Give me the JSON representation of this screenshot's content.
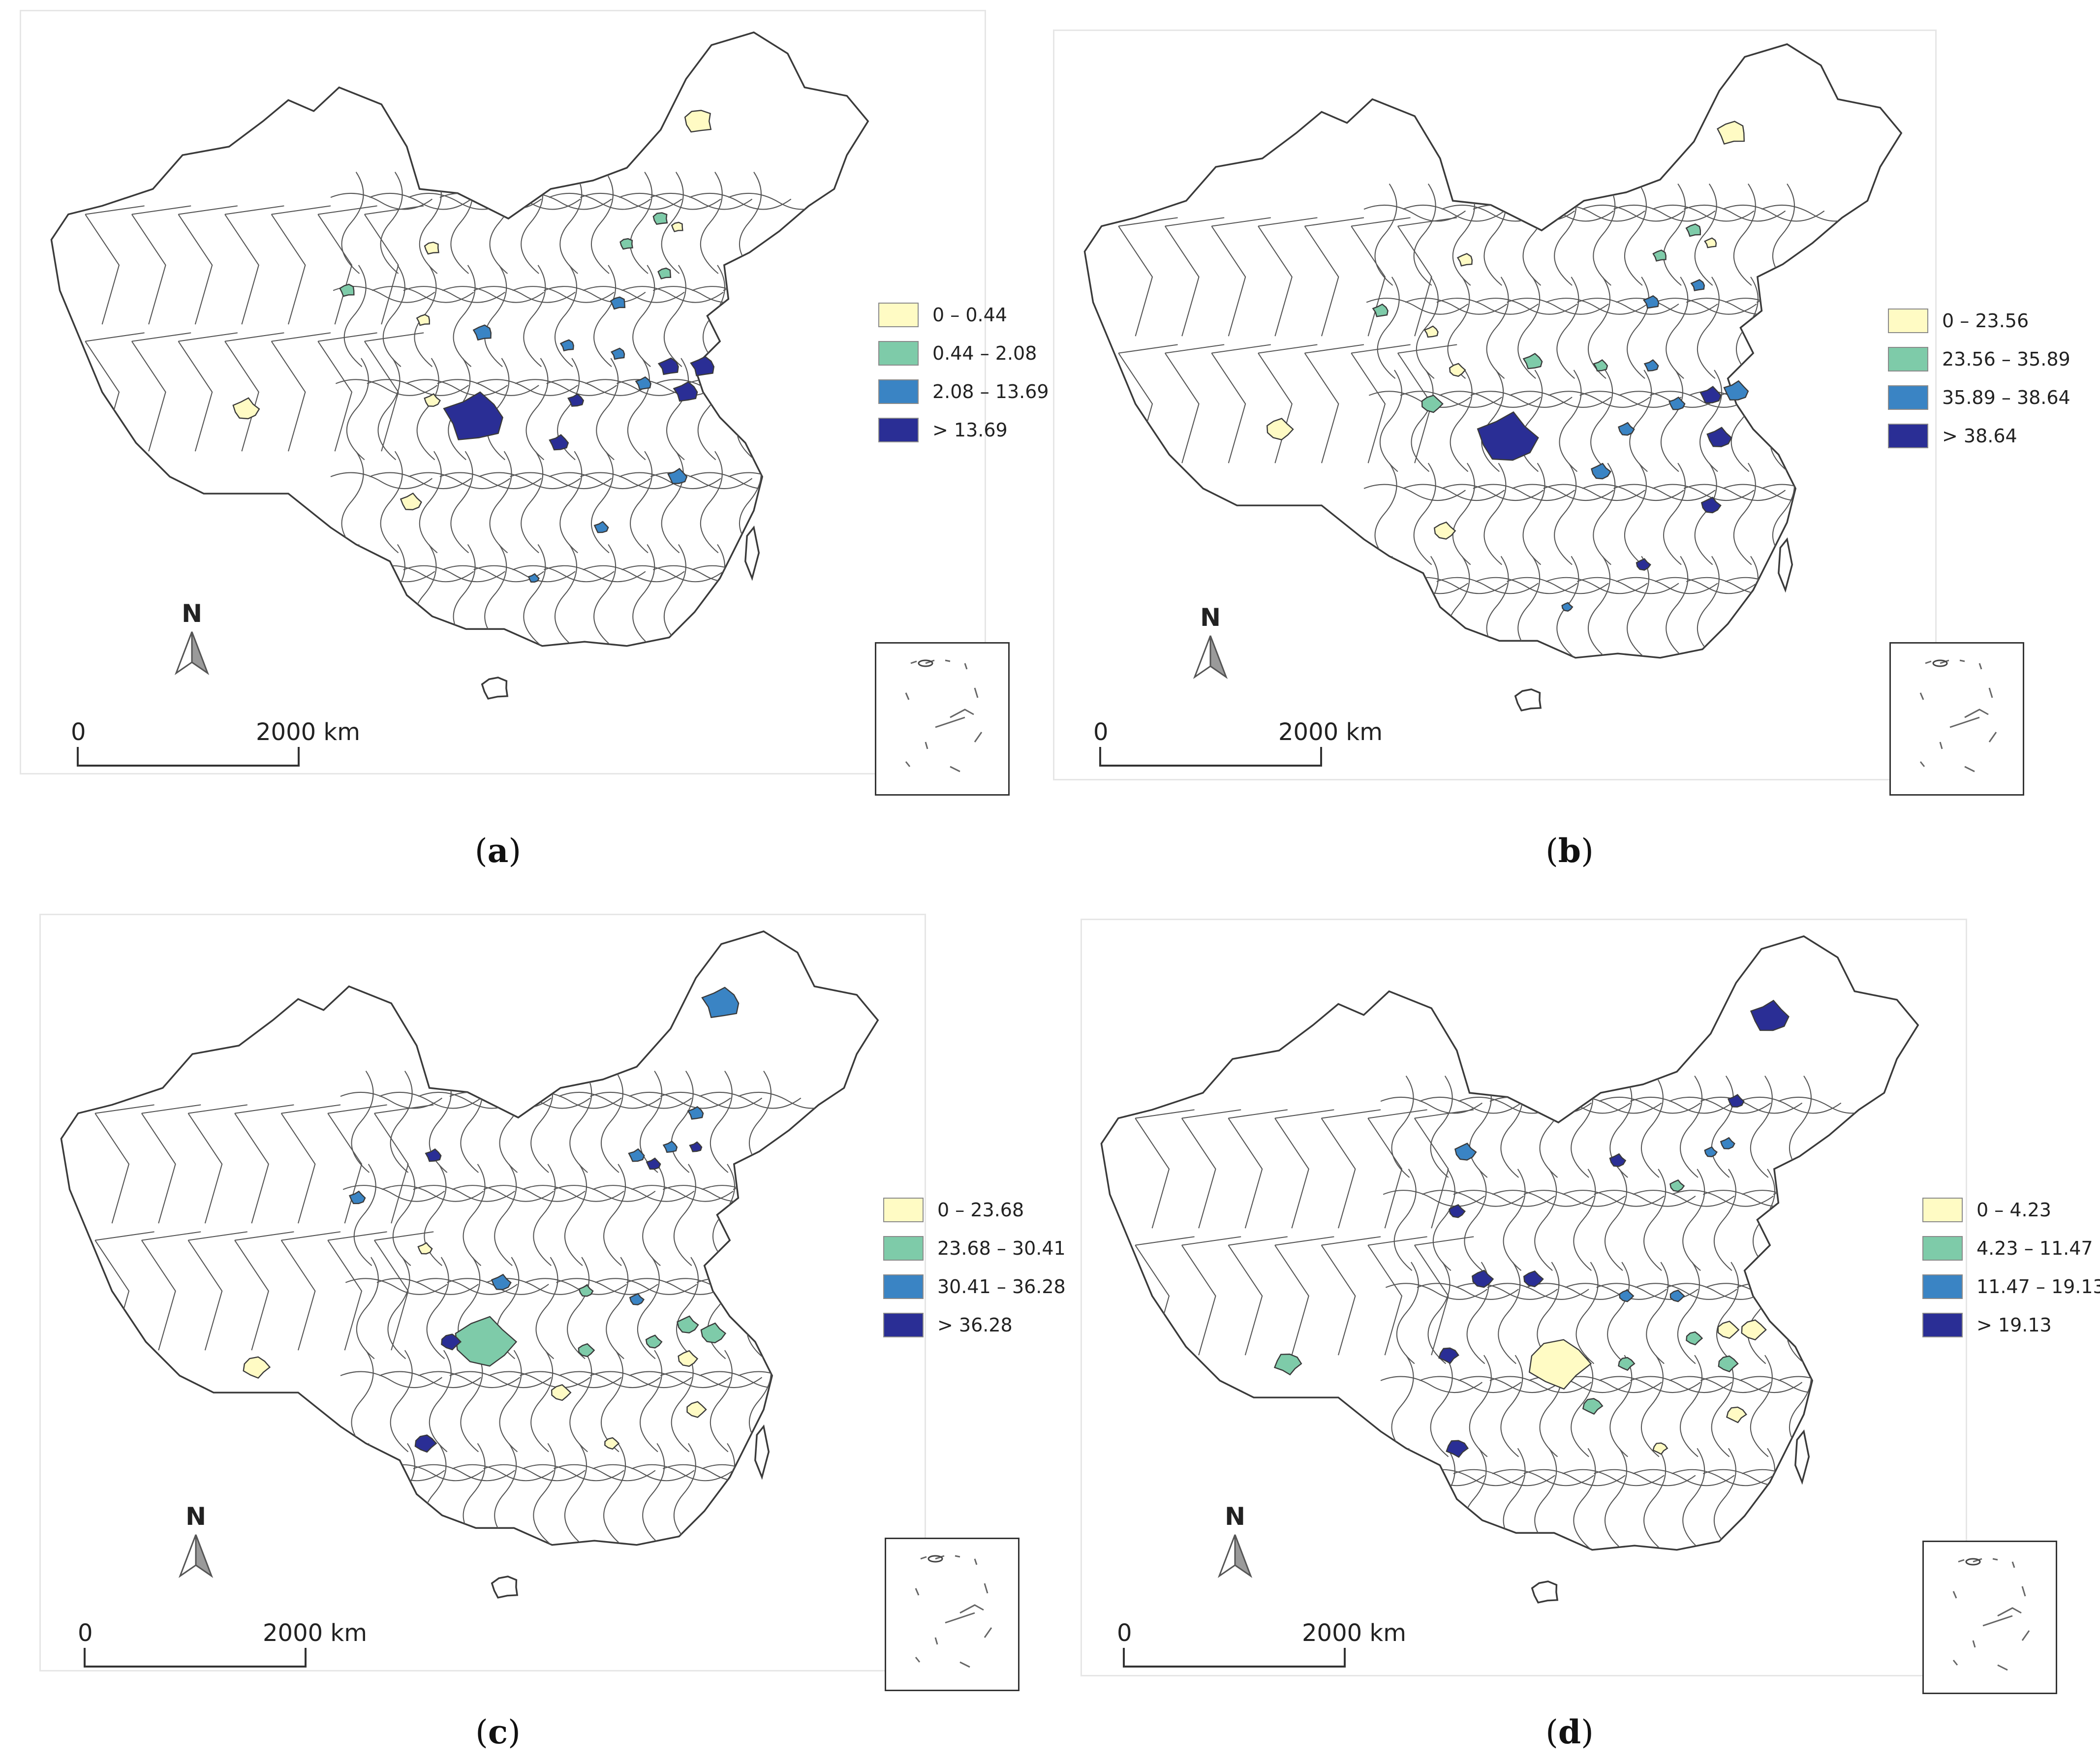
{
  "colors": {
    "class1": "#FFFBC4",
    "class2": "#7ECBA9",
    "class3": "#3A84C4",
    "class4": "#2A2E95",
    "border": "#3a3a3a"
  },
  "panels": [
    {
      "caption": "a",
      "north": "N",
      "scale": {
        "start": "0",
        "end": "2000 km"
      },
      "legend": [
        "0 – 0.44",
        "0.44 – 2.08",
        "2.08 – 13.69",
        "> 13.69"
      ]
    },
    {
      "caption": "b",
      "north": "N",
      "scale": {
        "start": "0",
        "end": "2000 km"
      },
      "legend": [
        "0 – 23.56",
        "23.56 – 35.89",
        "35.89 – 38.64",
        "> 38.64"
      ]
    },
    {
      "caption": "c",
      "north": "N",
      "scale": {
        "start": "0",
        "end": "2000 km"
      },
      "legend": [
        "0 – 23.68",
        "23.68 – 30.41",
        "30.41 – 36.28",
        "> 36.28"
      ]
    },
    {
      "caption": "d",
      "north": "N",
      "scale": {
        "start": "0",
        "end": "2000 km"
      },
      "legend": [
        "0 – 4.23",
        "4.23 – 11.47",
        "11.47 – 19.13",
        "> 19.13"
      ]
    }
  ]
}
